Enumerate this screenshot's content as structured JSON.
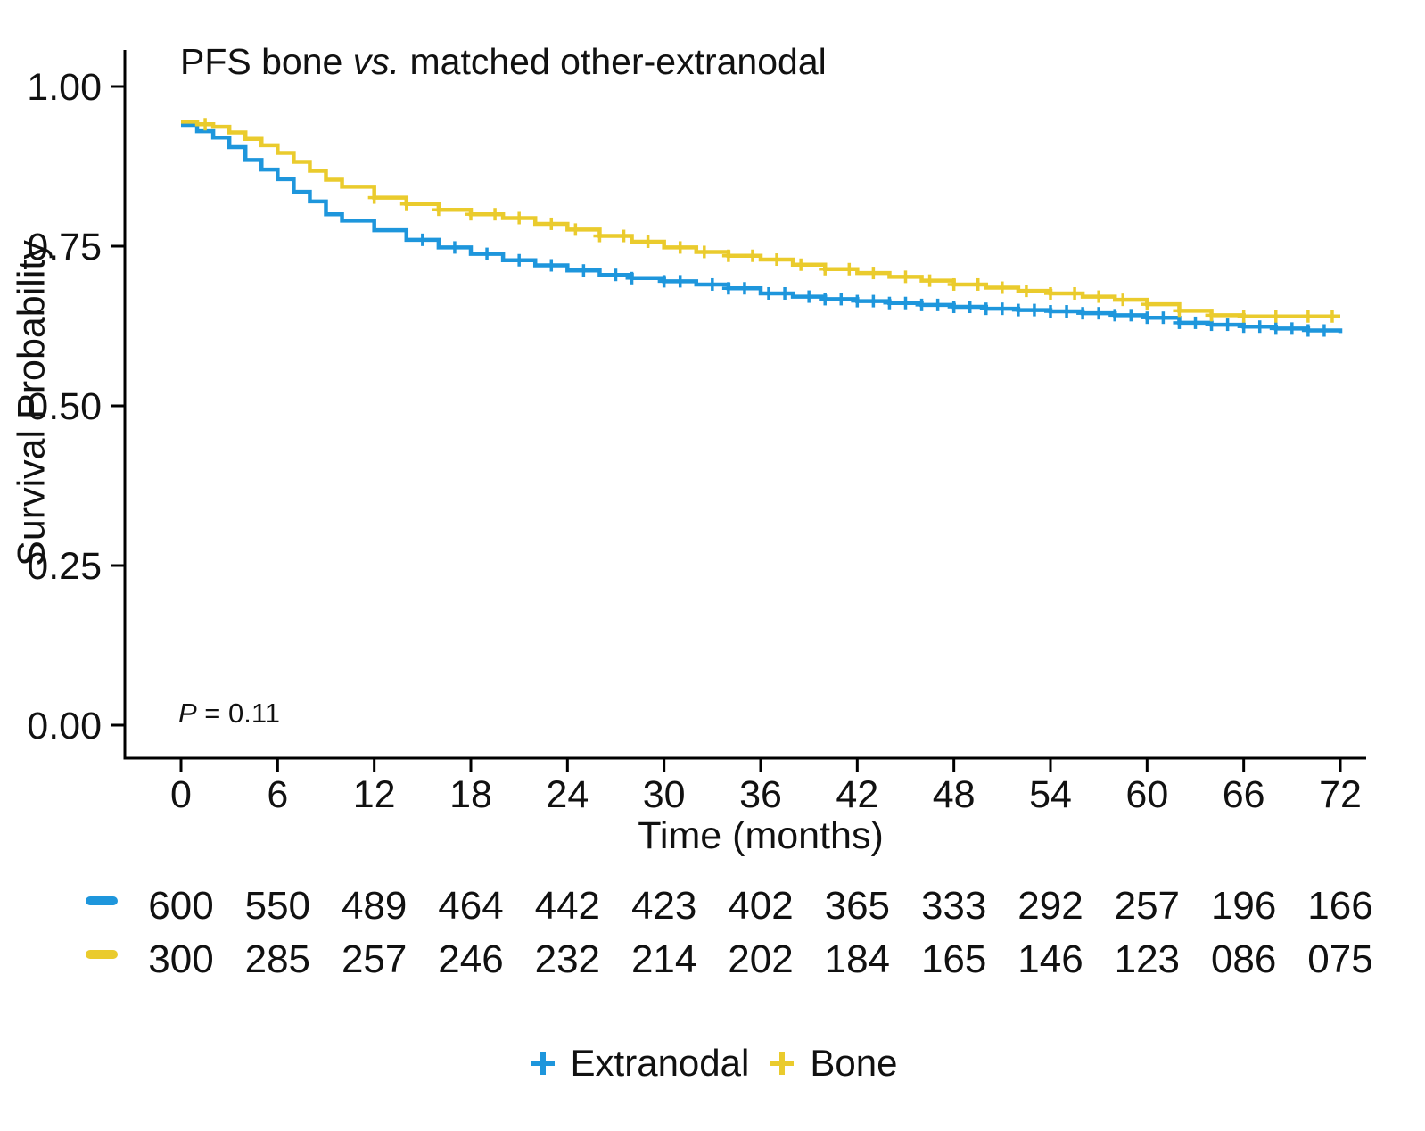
{
  "figure": {
    "title_prefix": "PFS bone ",
    "title_vs": "vs.",
    "title_suffix": " matched other-extranodal",
    "p_italic": "P",
    "p_rest": " = 0.11",
    "x_label": "Time (months)",
    "y_label": "Survival Probability"
  },
  "chart_data": {
    "type": "line",
    "subtype": "kaplan-meier-step",
    "title": "PFS bone vs. matched other-extranodal",
    "xlabel": "Time (months)",
    "ylabel": "Survival Probability",
    "annotation": "P = 0.11",
    "xlim": [
      0,
      72
    ],
    "ylim": [
      0,
      1
    ],
    "grid": false,
    "legend_position": "bottom",
    "x_ticks": [
      0,
      6,
      12,
      18,
      24,
      30,
      36,
      42,
      48,
      54,
      60,
      66,
      72
    ],
    "y_ticks": [
      0,
      0.25,
      0.5,
      0.75,
      1
    ],
    "y_tick_labels": [
      "0.00",
      "0.25",
      "0.50",
      "0.75",
      "1.00"
    ],
    "axis_color": "#000000",
    "series": [
      {
        "name": "Extranodal",
        "color": "#1E96DC",
        "x": [
          0,
          1,
          2,
          3,
          4,
          5,
          6,
          7,
          8,
          9,
          10,
          12,
          14,
          16,
          18,
          20,
          22,
          24,
          26,
          28,
          30,
          32,
          34,
          36,
          38,
          40,
          42,
          44,
          46,
          48,
          50,
          52,
          54,
          56,
          58,
          60,
          62,
          64,
          66,
          68,
          70,
          72
        ],
        "y": [
          0.94,
          0.93,
          0.92,
          0.905,
          0.885,
          0.87,
          0.855,
          0.835,
          0.82,
          0.8,
          0.79,
          0.775,
          0.76,
          0.748,
          0.738,
          0.728,
          0.72,
          0.712,
          0.705,
          0.7,
          0.695,
          0.69,
          0.684,
          0.676,
          0.671,
          0.667,
          0.664,
          0.661,
          0.658,
          0.655,
          0.652,
          0.65,
          0.648,
          0.645,
          0.642,
          0.638,
          0.63,
          0.627,
          0.624,
          0.621,
          0.618,
          0.614
        ],
        "censor_times": [
          15,
          17,
          19,
          21,
          23,
          25,
          27,
          28,
          30,
          31,
          33,
          34,
          35,
          36.5,
          37.5,
          39,
          40,
          41,
          42,
          43,
          44,
          45,
          46,
          47,
          48,
          49,
          50,
          51,
          52,
          53,
          54,
          55,
          56,
          57,
          58,
          59,
          60,
          61,
          62,
          63,
          64,
          65,
          66,
          67,
          68,
          69,
          70,
          71
        ]
      },
      {
        "name": "Bone",
        "color": "#EACB2D",
        "x": [
          0,
          1,
          2,
          3,
          4,
          5,
          6,
          7,
          8,
          9,
          10,
          12,
          14,
          16,
          18,
          20,
          22,
          24,
          26,
          28,
          30,
          32,
          34,
          36,
          38,
          40,
          42,
          44,
          46,
          48,
          50,
          52,
          54,
          56,
          58,
          60,
          62,
          64,
          66,
          68,
          70,
          72
        ],
        "y": [
          0.945,
          0.941,
          0.937,
          0.928,
          0.918,
          0.908,
          0.896,
          0.882,
          0.868,
          0.854,
          0.843,
          0.826,
          0.816,
          0.807,
          0.8,
          0.794,
          0.785,
          0.776,
          0.766,
          0.757,
          0.748,
          0.741,
          0.735,
          0.729,
          0.721,
          0.714,
          0.708,
          0.702,
          0.696,
          0.69,
          0.685,
          0.68,
          0.676,
          0.671,
          0.666,
          0.659,
          0.649,
          0.642,
          0.64,
          0.64,
          0.64,
          0.64
        ],
        "censor_times": [
          1.5,
          12,
          14,
          16,
          18,
          19.5,
          21,
          23,
          24.5,
          26,
          27.5,
          29,
          31,
          32.5,
          34,
          35.5,
          37,
          38.5,
          40,
          41.5,
          43,
          45,
          46.5,
          48,
          49.5,
          51,
          52.5,
          54,
          55.5,
          57,
          58.5,
          60,
          62,
          64,
          66,
          68,
          70,
          71.5
        ]
      }
    ],
    "risk_table": {
      "times": [
        0,
        6,
        12,
        18,
        24,
        30,
        36,
        42,
        48,
        54,
        60,
        66,
        72
      ],
      "rows": [
        {
          "name": "Extranodal",
          "color": "#1E96DC",
          "counts": [
            "600",
            "550",
            "489",
            "464",
            "442",
            "423",
            "402",
            "365",
            "333",
            "292",
            "257",
            "196",
            "166"
          ]
        },
        {
          "name": "Bone",
          "color": "#EACB2D",
          "counts": [
            "300",
            "285",
            "257",
            "246",
            "232",
            "214",
            "202",
            "184",
            "165",
            "146",
            "123",
            "086",
            "075"
          ]
        }
      ]
    },
    "legend": [
      {
        "label": "Extranodal",
        "color": "#1E96DC"
      },
      {
        "label": "Bone",
        "color": "#EACB2D"
      }
    ]
  }
}
